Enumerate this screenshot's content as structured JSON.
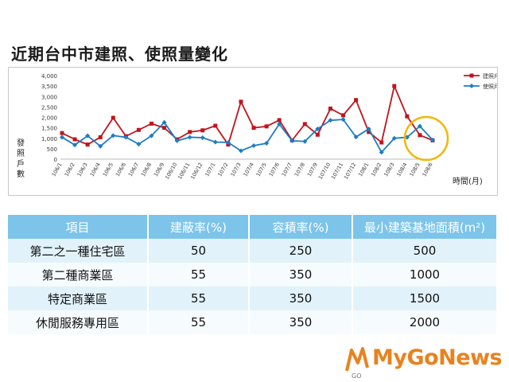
{
  "page_title": "近期台中市建照、使照量變化",
  "chart_data": {
    "type": "line",
    "xlabel": "時間(月)",
    "ylabel": "發照戶數",
    "ylim": [
      0,
      4000
    ],
    "yticks": [
      "0",
      "500",
      "1,000",
      "1,500",
      "2,000",
      "2,500",
      "3,000",
      "3,500",
      "4,000"
    ],
    "categories": [
      "106/1",
      "106/2",
      "106/3",
      "106/4",
      "106/5",
      "106/6",
      "106/7",
      "106/8",
      "106/9",
      "106/10",
      "106/11",
      "106/12",
      "107/1",
      "107/2",
      "107/3",
      "107/4",
      "107/5",
      "107/6",
      "107/7",
      "107/8",
      "107/9",
      "107/10",
      "107/11",
      "107/12",
      "108/1",
      "108/2",
      "108/3",
      "108/4",
      "108/5",
      "108/6"
    ],
    "legend_position": "top-right",
    "series": [
      {
        "name": "建照戶數",
        "color": "#c0141c",
        "values": [
          1250,
          950,
          700,
          1050,
          1980,
          1100,
          1400,
          1700,
          1500,
          950,
          1300,
          1380,
          1600,
          700,
          2750,
          1500,
          1570,
          1870,
          900,
          1680,
          1170,
          2420,
          2100,
          2830,
          1300,
          800,
          3500,
          2050,
          1150,
          900
        ]
      },
      {
        "name": "使照戶數",
        "color": "#1e7cc3",
        "values": [
          1050,
          680,
          1120,
          620,
          1130,
          1050,
          720,
          1120,
          1760,
          880,
          1050,
          1030,
          820,
          800,
          400,
          650,
          760,
          1680,
          880,
          850,
          1450,
          1860,
          1900,
          1060,
          1450,
          330,
          1000,
          1050,
          1580,
          920
        ]
      }
    ]
  },
  "table": {
    "headers": [
      "項目",
      "建蔽率(%)",
      "容積率(%)",
      "最小建築基地面積(m²)"
    ],
    "rows": [
      [
        "第二之一種住宅區",
        "50",
        "250",
        "500"
      ],
      [
        "第二種商業區",
        "55",
        "350",
        "1000"
      ],
      [
        "特定商業區",
        "55",
        "350",
        "1500"
      ],
      [
        "休閒服務專用區",
        "55",
        "350",
        "2000"
      ]
    ]
  },
  "logo": {
    "text": "MyGoNews",
    "sub_text": "GO"
  },
  "colors": {
    "header_bg": "#7cc4ea",
    "row_odd": "#e2f2fb",
    "row_even": "#f6fbfe",
    "highlight_circle": "#f2b700",
    "logo": "#e8821f"
  }
}
